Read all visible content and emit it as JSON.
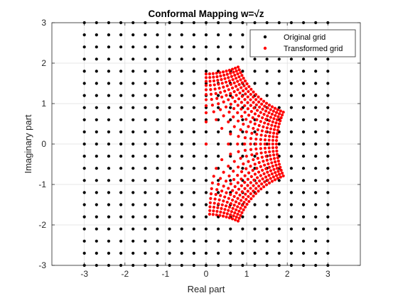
{
  "chart_data": {
    "type": "scatter",
    "title": "Conformal Mapping w=√z",
    "xlabel": "Real part",
    "ylabel": "Imaginary part",
    "xlim": [
      -3.8,
      3.8
    ],
    "ylim": [
      -3,
      3
    ],
    "xticks": [
      -3,
      -2,
      -1,
      0,
      1,
      2,
      3
    ],
    "yticks": [
      -3,
      -2,
      -1,
      0,
      1,
      2,
      3
    ],
    "grid": true,
    "legend_position": "top-right",
    "series": [
      {
        "name": "Original grid",
        "color": "#000000",
        "x_range": [
          -3,
          3
        ],
        "y_range": [
          -3,
          3
        ],
        "grid_step": 0.3,
        "description_mapping": "identity"
      },
      {
        "name": "Transformed grid",
        "color": "#ff0000",
        "x_range": [
          -3,
          3
        ],
        "y_range": [
          -3,
          3
        ],
        "grid_step": 0.3,
        "description_mapping": "principal sqrt"
      }
    ]
  }
}
